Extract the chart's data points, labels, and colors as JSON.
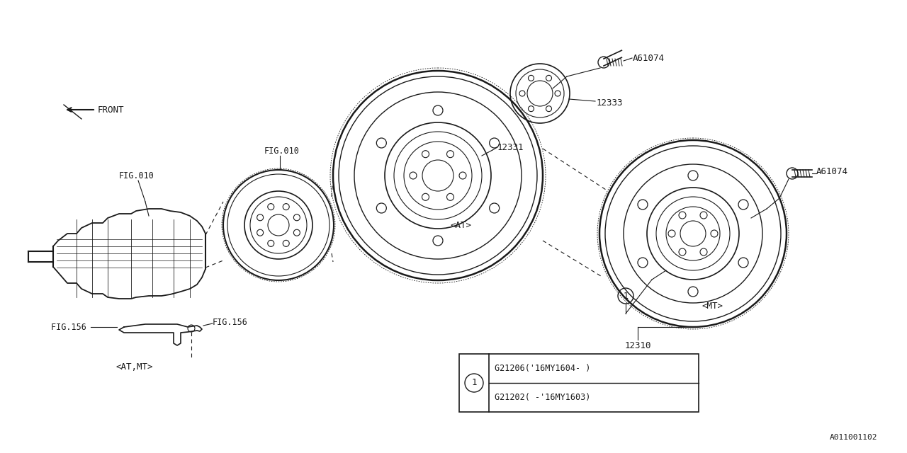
{
  "bg_color": "#ffffff",
  "line_color": "#1a1a1a",
  "legend_row1": "G21202( -'16MY1603)",
  "legend_row2": "G21206('16MY1604- )",
  "doc_num": "A011001102"
}
